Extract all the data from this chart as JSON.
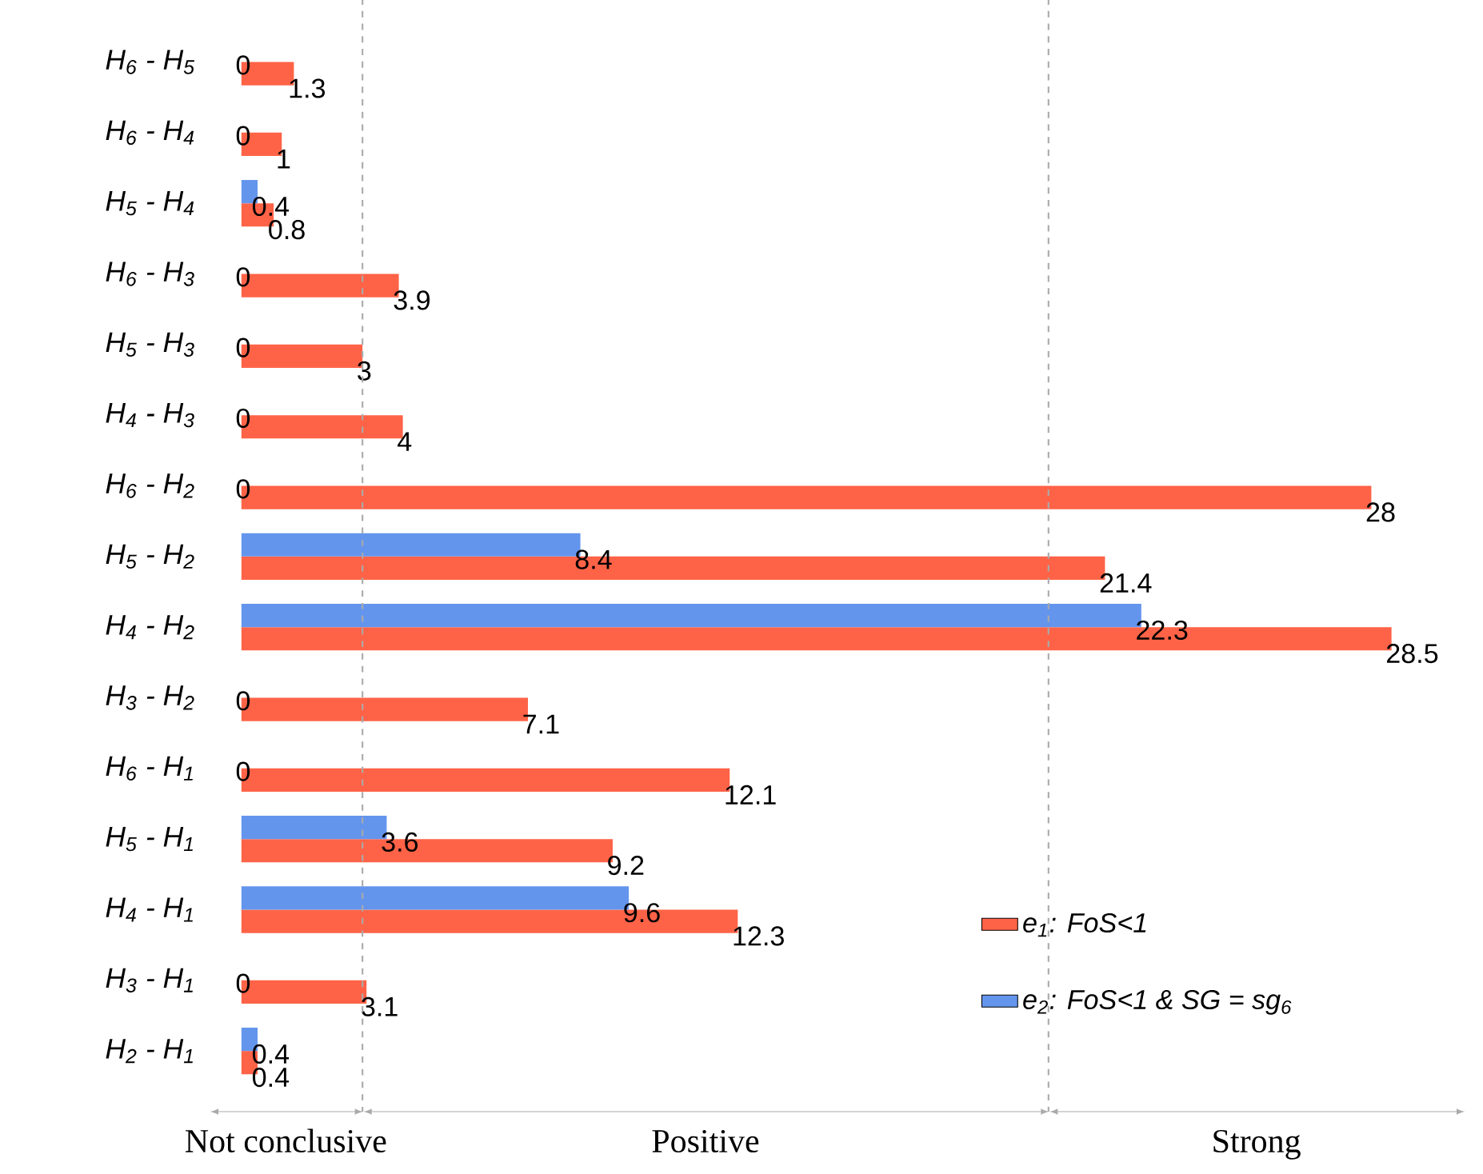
{
  "chart_data": {
    "type": "bar",
    "orientation": "horizontal",
    "categories": [
      "H$_{6}$ - H$_{5}$",
      "H$_{6}$ - H$_{4}$",
      "H$_{5}$ - H$_{4}$",
      "H$_{6}$ - H$_{3}$",
      "H$_{5}$ - H$_{3}$",
      "H$_{4}$ - H$_{3}$",
      "H$_{6}$ - H$_{2}$",
      "H$_{5}$ - H$_{2}$",
      "H$_{4}$ - H$_{2}$",
      "H$_{3}$ - H$_{2}$",
      "H$_{6}$ - H$_{1}$",
      "H$_{5}$ - H$_{1}$",
      "H$_{4}$ - H$_{1}$",
      "H$_{3}$ - H$_{1}$",
      "H$_{2}$ - H$_{1}$"
    ],
    "series": [
      {
        "name": "e$_{1}$: FoS<1",
        "color": "#ff6347",
        "values": [
          1.3,
          1,
          0.8,
          3.9,
          3,
          4,
          28,
          21.4,
          28.5,
          7.1,
          12.1,
          9.2,
          12.3,
          3.1,
          0.4
        ],
        "value_labels": [
          "1.3",
          "1",
          "0.8",
          "3.9",
          "3",
          "4",
          "28",
          "21.4",
          "28.5",
          "7.1",
          "12.1",
          "9.2",
          "12.3",
          "3.1",
          "0.4"
        ]
      },
      {
        "name": "e$_{2}$: FoS<1 & SG = sg$_{6}$",
        "color": "#6495ed",
        "values": [
          0,
          0,
          0.4,
          0,
          0,
          0,
          0,
          8.4,
          22.3,
          0,
          0,
          3.6,
          9.6,
          0,
          0.4
        ],
        "value_labels": [
          "0",
          "0",
          "0.4",
          "0",
          "0",
          "0",
          "0",
          "8.4",
          "22.3",
          "0",
          "0",
          "3.6",
          "9.6",
          "0",
          "0.4"
        ]
      }
    ],
    "xlim": [
      -0.8,
      30.3
    ],
    "tick_labels": "y",
    "legend": "bottom right",
    "ref_lines": [
      {
        "axis": "x",
        "value": 3,
        "color": "#aaaaaa",
        "line_style": "dashed"
      },
      {
        "axis": "x",
        "value": 20,
        "color": "#aaaaaa",
        "line_style": "dashed"
      }
    ],
    "annotations": [
      "Not conclusive",
      "Positive",
      "Strong"
    ]
  }
}
